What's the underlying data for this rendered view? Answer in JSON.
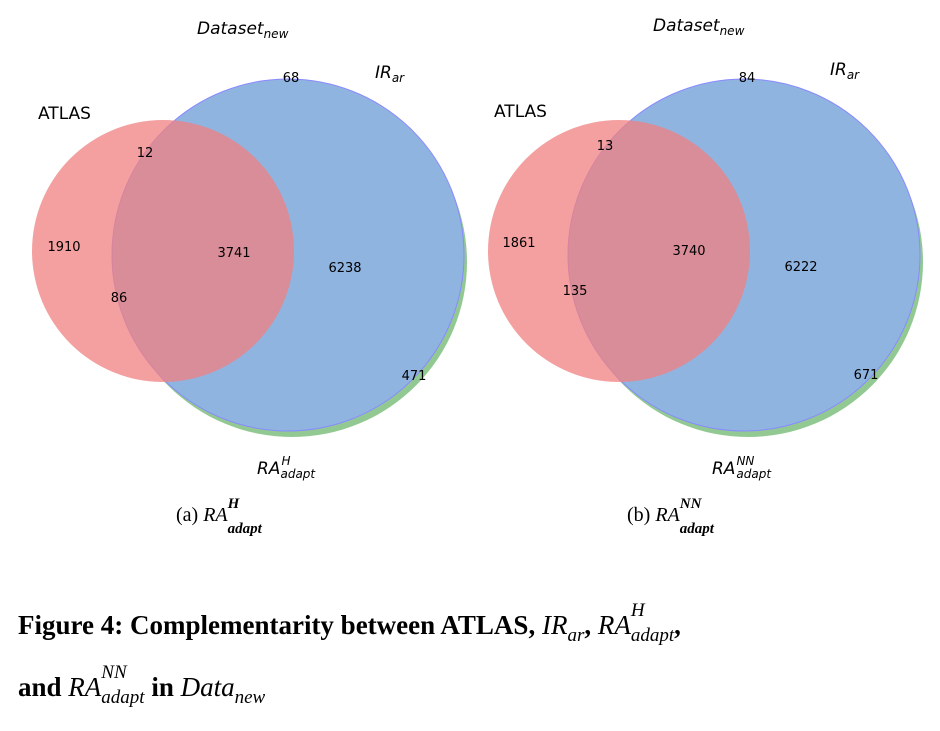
{
  "panels": [
    {
      "id": "a",
      "labels": {
        "atlas": "ATLAS",
        "dataset_main": "Dataset",
        "dataset_sub": "new",
        "ir_main": "IR",
        "ir_sub": "ar",
        "ra_main": "RA",
        "ra_sup": "H",
        "ra_sub": "adapt"
      },
      "counts": {
        "atlas_only": "1910",
        "atlas_dataset": "12",
        "all_three": "3741",
        "dataset_ra": "6238",
        "atlas_ra": "86",
        "dataset_only": "68",
        "ra_only": "471"
      },
      "caption": {
        "tag": "(a)",
        "main": "RA",
        "sup": "H",
        "sub": "adapt"
      }
    },
    {
      "id": "b",
      "labels": {
        "atlas": "ATLAS",
        "dataset_main": "Dataset",
        "dataset_sub": "new",
        "ir_main": "IR",
        "ir_sub": "ar",
        "ra_main": "RA",
        "ra_sup": "NN",
        "ra_sub": "adapt"
      },
      "counts": {
        "atlas_only": "1861",
        "atlas_dataset": "13",
        "all_three": "3740",
        "dataset_ra": "6222",
        "atlas_ra": "135",
        "dataset_only": "84",
        "ra_only": "671"
      },
      "caption": {
        "tag": "(b)",
        "main": "RA",
        "sup": "NN",
        "sub": "adapt"
      }
    }
  ],
  "figure_caption": {
    "prefix": "Figure 4: Complementarity between ATLAS,",
    "ir_main": "IR",
    "ir_sub": "ar",
    "comma1": ",",
    "ra1_main": "RA",
    "ra1_sup": "H",
    "ra1_sub": "adapt",
    "comma2": ",",
    "and": "and",
    "ra2_main": "RA",
    "ra2_sup": "NN",
    "ra2_sub": "adapt",
    "in": "in",
    "data_main": "Data",
    "data_sub": "new"
  },
  "colors": {
    "atlas": "#f08080",
    "dataset": "#8fb4e0",
    "ra": "#7fc07f",
    "edge_blue": "#8a8aff"
  }
}
